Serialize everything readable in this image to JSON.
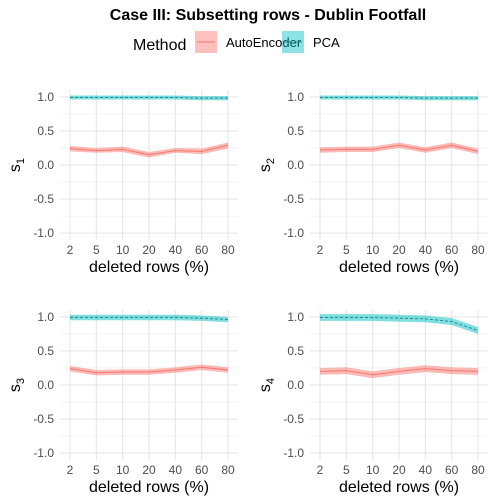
{
  "figure": {
    "title": "Case III: Subsetting rows - Dublin Footfall",
    "legend": {
      "title": "Method",
      "position": "top",
      "entries": [
        {
          "name": "AutoEncoder",
          "fill": "#f8766d",
          "line": "#f8766d",
          "dash": "solid"
        },
        {
          "name": "PCA",
          "fill": "#00bfc4",
          "line": "#2b8c8f",
          "dash": "dashed"
        }
      ]
    }
  },
  "chart_data": [
    {
      "type": "line",
      "panel": "s1",
      "ylabel_main": "s",
      "ylabel_sub": "1",
      "xlabel": "deleted rows (%)",
      "categories": [
        "2",
        "5",
        "10",
        "20",
        "40",
        "60",
        "80"
      ],
      "yticks": [
        "1.0",
        "0.5",
        "0.0",
        "-0.5",
        "-1.0"
      ],
      "ylim": [
        -1.1,
        1.1
      ],
      "grid": true,
      "series": [
        {
          "name": "AutoEncoder",
          "values": [
            0.24,
            0.21,
            0.23,
            0.15,
            0.21,
            0.2,
            0.29
          ],
          "lower": [
            0.2,
            0.18,
            0.19,
            0.11,
            0.18,
            0.16,
            0.24
          ],
          "upper": [
            0.28,
            0.25,
            0.27,
            0.19,
            0.25,
            0.24,
            0.33
          ]
        },
        {
          "name": "PCA",
          "values": [
            0.99,
            0.99,
            0.99,
            0.99,
            0.99,
            0.98,
            0.98
          ],
          "lower": [
            0.96,
            0.96,
            0.96,
            0.96,
            0.96,
            0.95,
            0.95
          ],
          "upper": [
            1.02,
            1.02,
            1.02,
            1.02,
            1.02,
            1.01,
            1.01
          ]
        }
      ]
    },
    {
      "type": "line",
      "panel": "s2",
      "ylabel_main": "s",
      "ylabel_sub": "2",
      "xlabel": "deleted rows (%)",
      "categories": [
        "2",
        "5",
        "10",
        "20",
        "40",
        "60",
        "80"
      ],
      "yticks": [
        "1.0",
        "0.5",
        "0.0",
        "-0.5",
        "-1.0"
      ],
      "ylim": [
        -1.1,
        1.1
      ],
      "grid": true,
      "series": [
        {
          "name": "AutoEncoder",
          "values": [
            0.22,
            0.23,
            0.23,
            0.29,
            0.22,
            0.29,
            0.2
          ],
          "lower": [
            0.18,
            0.19,
            0.19,
            0.25,
            0.18,
            0.25,
            0.16
          ],
          "upper": [
            0.26,
            0.27,
            0.27,
            0.33,
            0.26,
            0.33,
            0.24
          ]
        },
        {
          "name": "PCA",
          "values": [
            0.99,
            0.99,
            0.99,
            0.99,
            0.98,
            0.98,
            0.98
          ],
          "lower": [
            0.96,
            0.96,
            0.96,
            0.96,
            0.95,
            0.95,
            0.95
          ],
          "upper": [
            1.02,
            1.02,
            1.02,
            1.02,
            1.01,
            1.01,
            1.01
          ]
        }
      ]
    },
    {
      "type": "line",
      "panel": "s3",
      "ylabel_main": "s",
      "ylabel_sub": "3",
      "xlabel": "deleted rows (%)",
      "categories": [
        "2",
        "5",
        "10",
        "20",
        "40",
        "60",
        "80"
      ],
      "yticks": [
        "1.0",
        "0.5",
        "0.0",
        "-0.5",
        "-1.0"
      ],
      "ylim": [
        -1.1,
        1.1
      ],
      "grid": true,
      "series": [
        {
          "name": "AutoEncoder",
          "values": [
            0.24,
            0.18,
            0.19,
            0.19,
            0.22,
            0.26,
            0.22
          ],
          "lower": [
            0.2,
            0.14,
            0.15,
            0.15,
            0.18,
            0.22,
            0.18
          ],
          "upper": [
            0.28,
            0.22,
            0.23,
            0.23,
            0.26,
            0.3,
            0.26
          ]
        },
        {
          "name": "PCA",
          "values": [
            0.99,
            0.99,
            0.99,
            0.99,
            0.99,
            0.98,
            0.96
          ],
          "lower": [
            0.95,
            0.95,
            0.95,
            0.95,
            0.95,
            0.94,
            0.92
          ],
          "upper": [
            1.03,
            1.03,
            1.03,
            1.03,
            1.03,
            1.02,
            1.0
          ]
        }
      ]
    },
    {
      "type": "line",
      "panel": "s4",
      "ylabel_main": "s",
      "ylabel_sub": "4",
      "xlabel": "deleted rows (%)",
      "categories": [
        "2",
        "5",
        "10",
        "20",
        "40",
        "60",
        "80"
      ],
      "yticks": [
        "1.0",
        "0.5",
        "0.0",
        "-0.5",
        "-1.0"
      ],
      "ylim": [
        -1.1,
        1.1
      ],
      "grid": true,
      "series": [
        {
          "name": "AutoEncoder",
          "values": [
            0.2,
            0.21,
            0.15,
            0.2,
            0.24,
            0.21,
            0.2
          ],
          "lower": [
            0.15,
            0.16,
            0.1,
            0.15,
            0.19,
            0.16,
            0.15
          ],
          "upper": [
            0.25,
            0.26,
            0.2,
            0.25,
            0.29,
            0.26,
            0.25
          ]
        },
        {
          "name": "PCA",
          "values": [
            0.99,
            0.99,
            0.99,
            0.98,
            0.97,
            0.93,
            0.8
          ],
          "lower": [
            0.94,
            0.94,
            0.94,
            0.93,
            0.92,
            0.88,
            0.75
          ],
          "upper": [
            1.04,
            1.04,
            1.04,
            1.03,
            1.02,
            0.98,
            0.85
          ]
        }
      ]
    }
  ]
}
